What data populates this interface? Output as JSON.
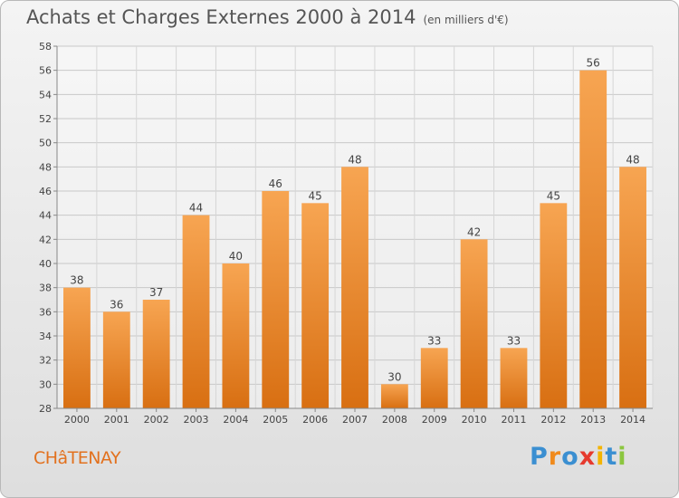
{
  "header": {
    "title": "Achats et Charges Externes 2000 à 2014",
    "unit": "(en milliers d'€)"
  },
  "commune": "CHâTENAY",
  "logo": {
    "text": "Proxiti",
    "colors": [
      "#3b8fd1",
      "#f08a1c",
      "#3b8fd1",
      "#e63a2e",
      "#f4b400",
      "#3b8fd1",
      "#8cc63f"
    ]
  },
  "chart_data": {
    "type": "bar",
    "categories": [
      "2000",
      "2001",
      "2002",
      "2003",
      "2004",
      "2005",
      "2006",
      "2007",
      "2008",
      "2009",
      "2010",
      "2011",
      "2012",
      "2013",
      "2014"
    ],
    "values": [
      38,
      36,
      37,
      44,
      40,
      46,
      45,
      48,
      30,
      33,
      42,
      33,
      45,
      56,
      48
    ],
    "ylim": [
      28,
      58
    ],
    "yticks": [
      28,
      30,
      32,
      34,
      36,
      38,
      40,
      42,
      44,
      46,
      48,
      50,
      52,
      54,
      56,
      58
    ],
    "grid": true,
    "bar_color": "#f08a2c"
  }
}
